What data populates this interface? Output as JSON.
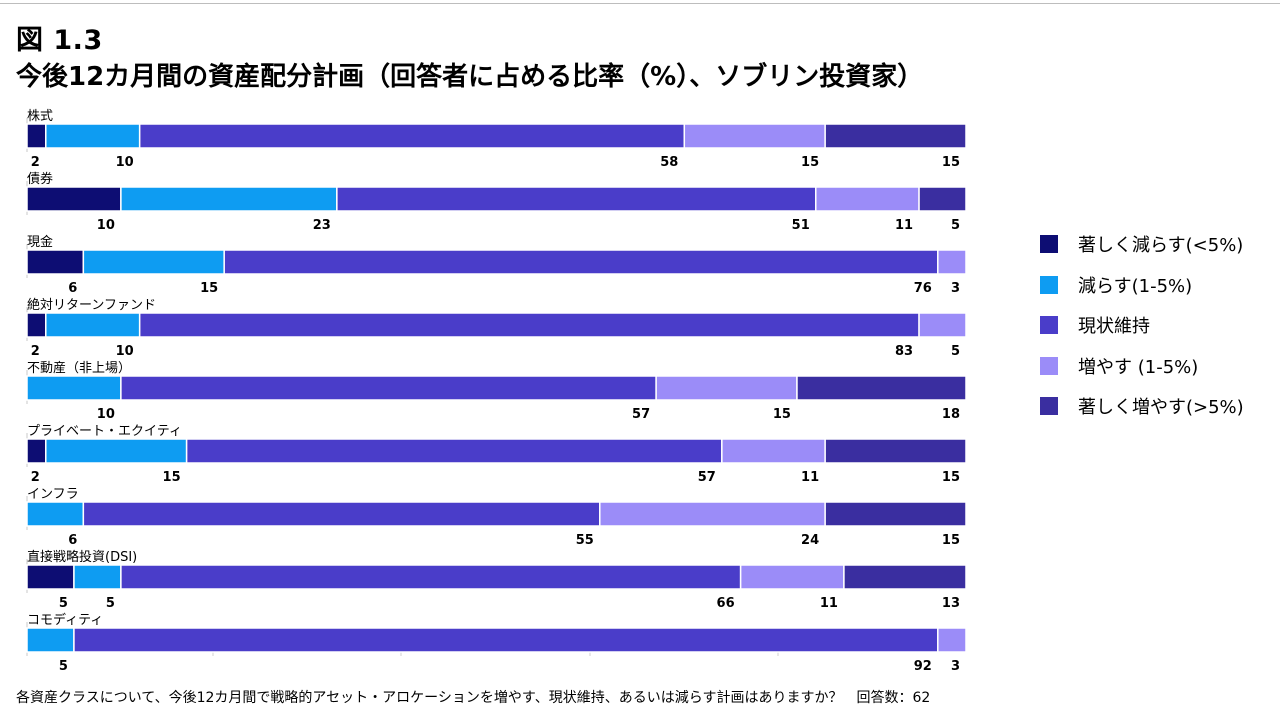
{
  "figure": {
    "number": "図 1.3",
    "title": "今後12カ月間の資産配分計画（回答者に占める比率（%）、ソブリン投資家）",
    "footnote": "各資産クラスについて、今後12カ月間で戦略的アセット・アロケーションを増やす、現状維持、あるいは減らす計画はありますか？　回答数：62"
  },
  "chart_data": {
    "type": "bar",
    "orientation": "horizontal",
    "stacked": true,
    "percent_stacked": true,
    "categories": [
      "株式",
      "債券",
      "現金",
      "絶対リターンファンド",
      "不動産（非上場）",
      "プライベート・エクイティ",
      "インフラ",
      "直接戦略投資(DSI)",
      "コモディティ"
    ],
    "series": [
      {
        "name": "著しく減らす(<5%)",
        "color": "#0d0d73",
        "values": [
          2,
          10,
          6,
          2,
          0,
          2,
          0,
          5,
          0
        ]
      },
      {
        "name": "減らす(1-5%)",
        "color": "#0e9cf2",
        "values": [
          10,
          23,
          15,
          10,
          10,
          15,
          6,
          5,
          5
        ]
      },
      {
        "name": "現状維持",
        "color": "#4a3dc9",
        "values": [
          58,
          51,
          76,
          83,
          57,
          57,
          55,
          66,
          92
        ]
      },
      {
        "name": "増やす (1-5%)",
        "color": "#9b8cf8",
        "values": [
          15,
          11,
          3,
          5,
          15,
          11,
          24,
          11,
          3
        ]
      },
      {
        "name": "著しく増やす(>5%)",
        "color": "#3a2ea0",
        "values": [
          15,
          5,
          0,
          0,
          18,
          15,
          15,
          13,
          0
        ]
      }
    ],
    "xlim": [
      0,
      100
    ],
    "legend_position": "right",
    "grid": false
  }
}
